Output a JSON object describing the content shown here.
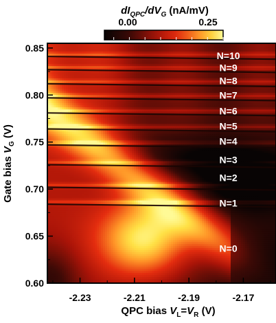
{
  "chart_data": {
    "type": "heatmap",
    "title": "dI_QPC/dV_G (nA/mV)",
    "title_parts": {
      "d1": "dI",
      "sub1": "QPC",
      "slash": "/d",
      "v": "V",
      "sub2": "G",
      "units": " (nA/mV)"
    },
    "colorbar": {
      "range": [
        -0.08,
        0.3
      ],
      "tick_values": [
        0.0,
        0.25
      ],
      "tick_labels": [
        "0.00",
        "0.25"
      ],
      "colormap": "black-red-orange-yellow"
    },
    "xlabel": "QPC bias V_L=V_R (V)",
    "xlabel_parts": {
      "pre": "QPC bias ",
      "v1": "V",
      "sub1": "L",
      "eq": "=",
      "v2": "V",
      "sub2": "R",
      "units": " (V)"
    },
    "ylabel": "Gate bias V_G (V)",
    "ylabel_parts": {
      "pre": "Gate bias ",
      "v": "V",
      "sub": "G",
      "units": " (V)"
    },
    "xlim": [
      -2.242,
      -2.158
    ],
    "ylim": [
      0.6,
      0.855
    ],
    "x_ticks": [
      -2.23,
      -2.21,
      -2.19,
      -2.17
    ],
    "x_tick_labels": [
      "-2.23",
      "-2.21",
      "-2.19",
      "-2.17"
    ],
    "y_ticks": [
      0.6,
      0.65,
      0.7,
      0.75,
      0.8,
      0.85
    ],
    "y_tick_labels": [
      "0.60",
      "0.65",
      "0.70",
      "0.75",
      "0.80",
      "0.85"
    ],
    "dark_lines_vg": [
      0.6825,
      0.7005,
      0.7245,
      0.7455,
      0.7625,
      0.7795,
      0.7955,
      0.8105,
      0.8255,
      0.8395
    ],
    "bright_blob": {
      "center_vqpc": -2.206,
      "center_vg": 0.647,
      "peak": 0.3
    },
    "annotations": [
      {
        "text": "N=0",
        "vg": 0.637
      },
      {
        "text": "N=1",
        "vg": 0.685
      },
      {
        "text": "N=2",
        "vg": 0.712
      },
      {
        "text": "N=3",
        "vg": 0.731
      },
      {
        "text": "N=4",
        "vg": 0.751
      },
      {
        "text": "N=5",
        "vg": 0.767
      },
      {
        "text": "N=6",
        "vg": 0.783
      },
      {
        "text": "N=7",
        "vg": 0.8
      },
      {
        "text": "N=8",
        "vg": 0.815
      },
      {
        "text": "N=9",
        "vg": 0.829
      },
      {
        "text": "N=10",
        "vg": 0.842
      }
    ],
    "annotation_vqpc": -2.1755
  }
}
